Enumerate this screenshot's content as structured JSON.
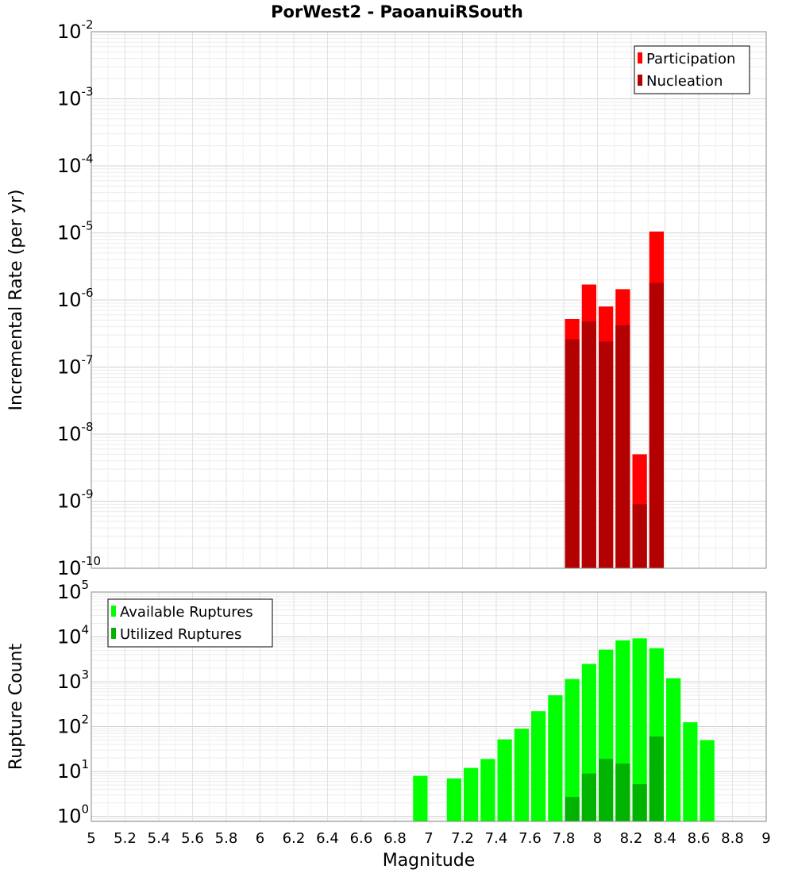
{
  "chart_data": {
    "title": "PorWest2 - PaoanuiRSouth",
    "xlabel": "Magnitude",
    "x_ticks": [
      "5",
      "5.2",
      "5.4",
      "5.6",
      "5.8",
      "6",
      "6.2",
      "6.4",
      "6.6",
      "6.8",
      "7",
      "7.2",
      "7.4",
      "7.6",
      "7.8",
      "8",
      "8.2",
      "8.4",
      "8.6",
      "8.8",
      "9"
    ],
    "xlim": [
      5,
      9
    ],
    "bar_width": 0.1,
    "panels": [
      {
        "name": "rate",
        "type": "bar",
        "ylabel": "Incremental Rate (per yr)",
        "yscale": "log",
        "ylim": [
          1e-10,
          0.01
        ],
        "y_ticks": [
          {
            "base": "10",
            "exp": "-10"
          },
          {
            "base": "10",
            "exp": "-9"
          },
          {
            "base": "10",
            "exp": "-8"
          },
          {
            "base": "10",
            "exp": "-7"
          },
          {
            "base": "10",
            "exp": "-6"
          },
          {
            "base": "10",
            "exp": "-5"
          },
          {
            "base": "10",
            "exp": "-4"
          },
          {
            "base": "10",
            "exp": "-3"
          },
          {
            "base": "10",
            "exp": "-2"
          }
        ],
        "legend_position": "top-right",
        "series": [
          {
            "name": "Participation",
            "color": "#ff0000",
            "x": [
              7.85,
              7.95,
              8.05,
              8.15,
              8.25,
              8.35
            ],
            "values": [
              5.2e-07,
              1.7e-06,
              8e-07,
              1.45e-06,
              5e-09,
              1.05e-05
            ]
          },
          {
            "name": "Nucleation",
            "color": "#b30000",
            "x": [
              7.85,
              7.95,
              8.05,
              8.15,
              8.25,
              8.35
            ],
            "values": [
              2.6e-07,
              4.8e-07,
              2.4e-07,
              4.2e-07,
              9e-10,
              1.8e-06
            ]
          }
        ]
      },
      {
        "name": "count",
        "type": "bar",
        "ylabel": "Rupture Count",
        "yscale": "log",
        "ylim": [
          0.77,
          100000
        ],
        "y_ticks": [
          {
            "base": "10",
            "exp": "0",
            "value": 1
          },
          {
            "base": "10",
            "exp": "1",
            "value": 10
          },
          {
            "base": "10",
            "exp": "2",
            "value": 100
          },
          {
            "base": "10",
            "exp": "3",
            "value": 1000
          },
          {
            "base": "10",
            "exp": "4",
            "value": 10000
          },
          {
            "base": "10",
            "exp": "5",
            "value": 100000
          }
        ],
        "legend_position": "top-left",
        "series": [
          {
            "name": "Available Ruptures",
            "color": "#00ff00",
            "x": [
              6.95,
              7.15,
              7.25,
              7.35,
              7.45,
              7.55,
              7.65,
              7.75,
              7.85,
              7.95,
              8.05,
              8.15,
              8.25,
              8.35,
              8.45,
              8.55,
              8.65
            ],
            "values": [
              8,
              7,
              12,
              19,
              52,
              90,
              220,
              500,
              1150,
              2500,
              5200,
              8400,
              9300,
              5600,
              1200,
              125,
              50
            ]
          },
          {
            "name": "Utilized Ruptures",
            "color": "#00b300",
            "x": [
              7.85,
              7.95,
              8.05,
              8.15,
              8.25,
              8.35
            ],
            "values": [
              2.7,
              9,
              19,
              15,
              5.2,
              60
            ]
          }
        ]
      }
    ]
  }
}
